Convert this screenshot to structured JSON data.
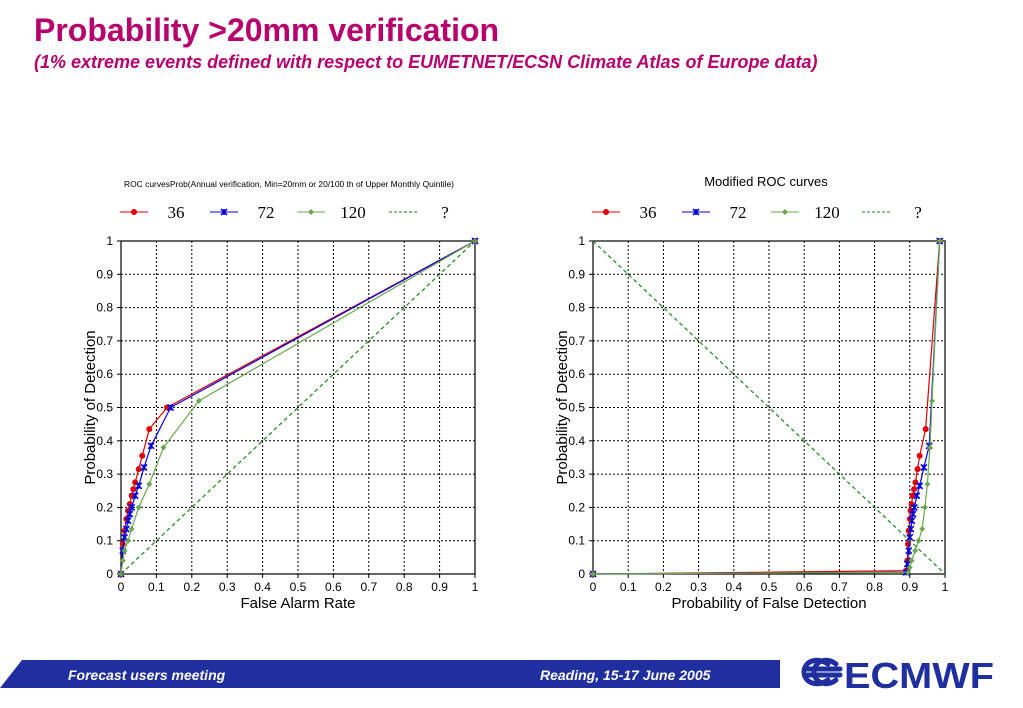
{
  "slide": {
    "title": "Probability >20mm verification",
    "subtitle": "(1% extreme events defined with respect to EUMETNET/ECSN Climate Atlas of Europe data)"
  },
  "footer": {
    "left": "Forecast users meeting",
    "right": "Reading, 15-17 June 2005",
    "logo": "ECMWF"
  },
  "colors": {
    "title": "#b5006e",
    "footer": "#1f2f9f",
    "s36": "#e00000",
    "s72": "#0000e0",
    "s120": "#6aa84f",
    "diag": "#1a8a1a"
  },
  "chart_data": [
    {
      "type": "line",
      "title": "ROC curvesProb(Annual verification, Min=20mm or 20/100 th of Upper Monthly Quintile)",
      "xlabel": "False Alarm Rate",
      "ylabel": "Probability of Detection",
      "xlim": [
        0,
        1
      ],
      "ylim": [
        0,
        1
      ],
      "xticks": [
        "0",
        "0.1",
        "0.2",
        "0.3",
        "0.4",
        "0.5",
        "0.6",
        "0.7",
        "0.8",
        "0.9",
        "1"
      ],
      "yticks": [
        "0",
        "0.1",
        "0.2",
        "0.3",
        "0.4",
        "0.5",
        "0.6",
        "0.7",
        "0.8",
        "0.9",
        "1"
      ],
      "grid": true,
      "legend_position": "top",
      "series": [
        {
          "name": "36",
          "color": "#e00000",
          "marker": "circle",
          "x": [
            0,
            0.005,
            0.01,
            0.015,
            0.02,
            0.025,
            0.03,
            0.035,
            0.04,
            0.05,
            0.06,
            0.08,
            0.13,
            1
          ],
          "y": [
            0,
            0.09,
            0.13,
            0.165,
            0.19,
            0.21,
            0.235,
            0.255,
            0.275,
            0.315,
            0.355,
            0.435,
            0.5,
            1
          ]
        },
        {
          "name": "72",
          "color": "#0000e0",
          "marker": "star",
          "x": [
            0,
            0.005,
            0.01,
            0.015,
            0.02,
            0.025,
            0.03,
            0.04,
            0.05,
            0.065,
            0.085,
            0.14,
            1
          ],
          "y": [
            0,
            0.07,
            0.11,
            0.135,
            0.16,
            0.18,
            0.2,
            0.235,
            0.265,
            0.32,
            0.385,
            0.5,
            1
          ]
        },
        {
          "name": "120",
          "color": "#6aa84f",
          "marker": "diamond",
          "x": [
            0,
            0.005,
            0.01,
            0.02,
            0.03,
            0.05,
            0.08,
            0.12,
            0.22,
            1
          ],
          "y": [
            0,
            0.04,
            0.07,
            0.1,
            0.135,
            0.2,
            0.27,
            0.38,
            0.52,
            1
          ]
        },
        {
          "name": "?",
          "color": "#1a8a1a",
          "dashed": true,
          "x": [
            0,
            1
          ],
          "y": [
            0,
            1
          ]
        }
      ]
    },
    {
      "type": "line",
      "title": "Modified ROC curves",
      "xlabel": "Probability of False Detection",
      "ylabel": "Probability of Detection",
      "xlim": [
        0,
        1
      ],
      "ylim": [
        0,
        1
      ],
      "xticks": [
        "0",
        "0.1",
        "0.2",
        "0.3",
        "0.4",
        "0.5",
        "0.6",
        "0.7",
        "0.8",
        "0.9",
        "1"
      ],
      "yticks": [
        "0",
        "0.1",
        "0.2",
        "0.3",
        "0.4",
        "0.5",
        "0.6",
        "0.7",
        "0.8",
        "0.9",
        "1"
      ],
      "grid": true,
      "legend_position": "top",
      "series": [
        {
          "name": "36",
          "color": "#e00000",
          "marker": "circle",
          "x": [
            0,
            0.89,
            0.893,
            0.895,
            0.897,
            0.9,
            0.902,
            0.905,
            0.908,
            0.912,
            0.916,
            0.922,
            0.928,
            0.945,
            0.985
          ],
          "y": [
            0,
            0.01,
            0.04,
            0.09,
            0.13,
            0.165,
            0.19,
            0.21,
            0.235,
            0.255,
            0.275,
            0.315,
            0.355,
            0.435,
            1
          ]
        },
        {
          "name": "72",
          "color": "#0000e0",
          "marker": "star",
          "x": [
            0,
            0.89,
            0.893,
            0.897,
            0.9,
            0.903,
            0.906,
            0.909,
            0.913,
            0.92,
            0.928,
            0.94,
            0.955,
            0.985
          ],
          "y": [
            0,
            0.005,
            0.03,
            0.07,
            0.11,
            0.135,
            0.16,
            0.18,
            0.2,
            0.235,
            0.265,
            0.32,
            0.385,
            1
          ]
        },
        {
          "name": "120",
          "color": "#6aa84f",
          "marker": "diamond",
          "x": [
            0,
            0.895,
            0.9,
            0.905,
            0.915,
            0.925,
            0.935,
            0.943,
            0.95,
            0.957,
            0.963,
            0.985
          ],
          "y": [
            0,
            0.005,
            0.02,
            0.04,
            0.07,
            0.1,
            0.135,
            0.2,
            0.27,
            0.38,
            0.52,
            1
          ]
        },
        {
          "name": "?",
          "color": "#1a8a1a",
          "dashed": true,
          "x": [
            0,
            1
          ],
          "y": [
            1,
            0
          ]
        }
      ]
    }
  ]
}
